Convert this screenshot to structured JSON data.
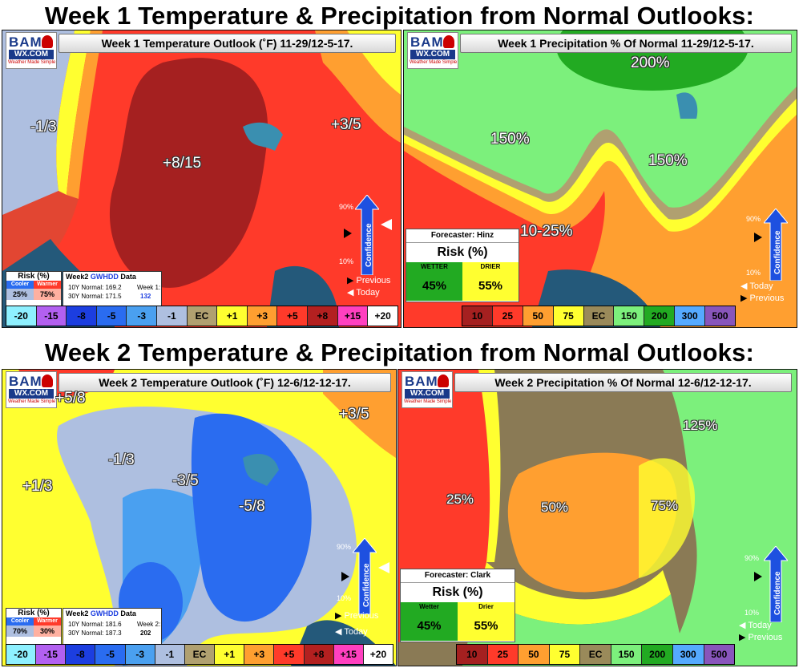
{
  "headings": {
    "week1": "Week 1 Temperature & Precipitation from Normal Outlooks:",
    "week2": "Week 2 Temperature & Precipitation from Normal Outlooks:"
  },
  "logo": {
    "bam": "BAM",
    "wx": "WX.COM",
    "tagline": "Weather Made Simple"
  },
  "confidence": {
    "high": "90%",
    "low": "10%",
    "word": "Confidence"
  },
  "nav": {
    "previous": "Previous",
    "today": "Today"
  },
  "temp_legend": [
    "-20",
    "-15",
    "-8",
    "-5",
    "-3",
    "-1",
    "EC",
    "+1",
    "+3",
    "+5",
    "+8",
    "+15",
    "+20"
  ],
  "temp_legend_colors": [
    "#8ef0ff",
    "#b260f0",
    "#1c3ee0",
    "#2a6cf0",
    "#4aa0f0",
    "#aebfe0",
    "#b0a070",
    "#ffff30",
    "#ff9f30",
    "#ff3a2a",
    "#b32020",
    "#ff40c0",
    "#ffffff"
  ],
  "precip_legend": [
    "10",
    "25",
    "50",
    "75",
    "EC",
    "150",
    "200",
    "300",
    "500"
  ],
  "precip_legend_colors": [
    "#a52020",
    "#ff3a2a",
    "#ff9f30",
    "#ffff30",
    "#9a8a5a",
    "#7cf07c",
    "#22aa22",
    "#55aaff",
    "#8855bb"
  ],
  "week1_temp": {
    "title": "Week 1 Temperature Outlook (˚F) 11-29/12-5-17.",
    "labels": [
      "-1/3",
      "+8/15",
      "+3/5"
    ],
    "risk": {
      "caption": "Risk (%)",
      "cooler_label": "Cooler",
      "warmer_label": "Warmer",
      "cooler": "25%",
      "warmer": "75%"
    },
    "gwhdd": {
      "title": "Week2",
      "title_accent": "GWHDD",
      "title_suffix": "Data",
      "ten_year": "10Y Normal: 169.2",
      "thirty_year": "30Y Normal: 171.5",
      "week_label": "Week 1:",
      "week_value": "132"
    }
  },
  "week1_precip": {
    "title": "Week 1 Precipitation % Of Normal 11-29/12-5-17.",
    "labels": [
      "200%",
      "150%",
      "150%",
      "10-25%"
    ],
    "forecaster": "Forecaster: Hinz",
    "risk_caption": "Risk (%)",
    "wetter_label": "WETTER",
    "drier_label": "DRIER",
    "wetter": "45%",
    "drier": "55%"
  },
  "week2_temp": {
    "title": "Week 2 Temperature Outlook (˚F) 12-6/12-12-17.",
    "labels": [
      "+5/8",
      "+3/5",
      "-1/3",
      "+1/3",
      "-3/5",
      "-5/8"
    ],
    "risk": {
      "caption": "Risk (%)",
      "cooler_label": "Cooler",
      "warmer_label": "Warmer",
      "cooler": "70%",
      "warmer": "30%"
    },
    "gwhdd": {
      "title": "Week2",
      "title_accent": "GWHDD",
      "title_suffix": "Data",
      "ten_year": "10Y Normal: 181.6",
      "thirty_year": "30Y Normal: 187.3",
      "week_label": "Week 2:",
      "week_value": "202"
    }
  },
  "week2_precip": {
    "title": "Week 2 Precipitation % Of Normal 12-6/12-12-17.",
    "labels": [
      "125%",
      "25%",
      "50%",
      "75%"
    ],
    "forecaster": "Forecaster: Clark",
    "risk_caption": "Risk (%)",
    "wetter_label": "Wetter",
    "drier_label": "Drier",
    "wetter": "45%",
    "drier": "55%"
  }
}
